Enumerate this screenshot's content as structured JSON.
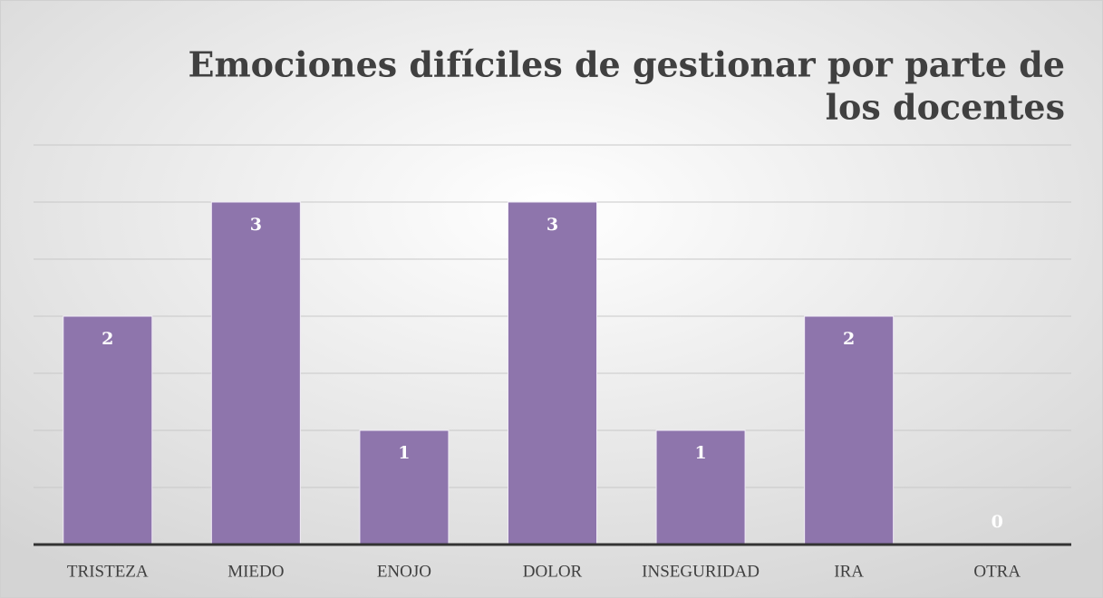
{
  "chart_data": {
    "type": "bar",
    "title": [
      "Emociones difíciles de gestionar por parte de",
      "los docentes"
    ],
    "categories": [
      "TRISTEZA",
      "MIEDO",
      "ENOJO",
      "DOLOR",
      "INSEGURIDAD",
      "IRA",
      "OTRA"
    ],
    "values": [
      2,
      3,
      1,
      3,
      1,
      2,
      0
    ],
    "color": "#8e75ac",
    "ylim": [
      0,
      3.5
    ],
    "yticks": [
      0,
      0.5,
      1,
      1.5,
      2,
      2.5,
      3,
      3.5
    ],
    "grid": true
  }
}
